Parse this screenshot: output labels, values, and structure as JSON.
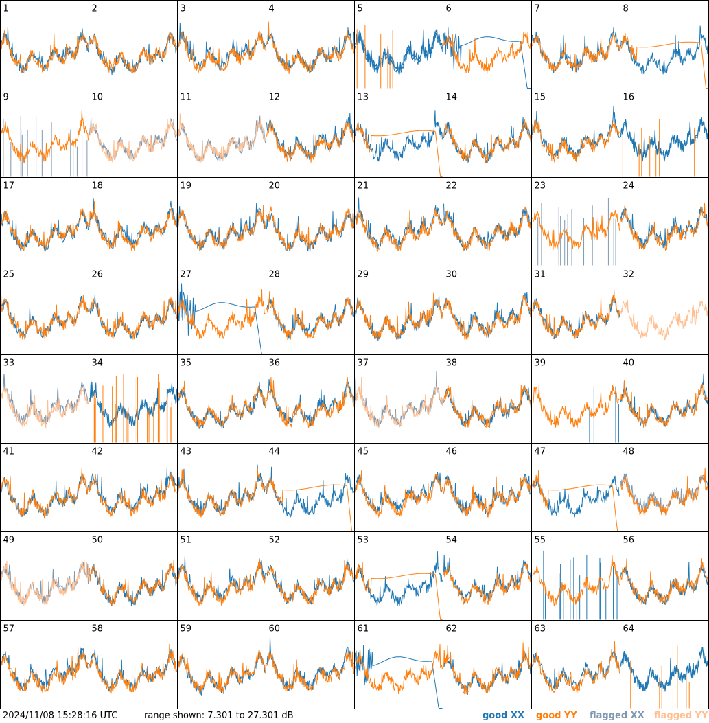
{
  "footer": {
    "timestamp": "2024/11/08 15:28:16 UTC",
    "range_text": "range shown: 7.301 to 27.301 dB"
  },
  "legend": [
    {
      "key": "good_xx",
      "label": "good XX",
      "color": "#1f77b4"
    },
    {
      "key": "good_yy",
      "label": "good YY",
      "color": "#ff7f0e"
    },
    {
      "key": "flagged_xx",
      "label": "flagged XX",
      "color": "#7f98b0"
    },
    {
      "key": "flagged_yy",
      "label": "flagged YY",
      "color": "#ffbf90"
    }
  ],
  "colors": {
    "good_xx": "#1f77b4",
    "good_yy": "#ff7f0e",
    "flagged_xx": "#7f98b0",
    "flagged_yy": "#ffbf90",
    "grid_lines": "#000000"
  },
  "chart_data": {
    "type": "line",
    "layout": "8x8 small multiples",
    "range_db": [
      7.301,
      27.301
    ],
    "panels": [
      1,
      2,
      3,
      4,
      5,
      6,
      7,
      8,
      9,
      10,
      11,
      12,
      13,
      14,
      15,
      16,
      17,
      18,
      19,
      20,
      21,
      22,
      23,
      24,
      25,
      26,
      27,
      28,
      29,
      30,
      31,
      32,
      33,
      34,
      35,
      36,
      37,
      38,
      39,
      40,
      41,
      42,
      43,
      44,
      45,
      46,
      47,
      48,
      49,
      50,
      51,
      52,
      53,
      54,
      55,
      56,
      57,
      58,
      59,
      60,
      61,
      62,
      63,
      64
    ],
    "panel_modes": {
      "5": [
        "good",
        "yy_spikes"
      ],
      "6": [
        "good",
        "xx_sag"
      ],
      "8": [
        "good",
        "yy_flat"
      ],
      "9": [
        "flagged_xx_spikes",
        "good_yy"
      ],
      "10": [
        "flagged",
        "none"
      ],
      "11": [
        "flagged",
        "none"
      ],
      "13": [
        "good",
        "yy_flat"
      ],
      "16": [
        "good",
        "yy_spikes"
      ],
      "23": [
        "flagged_xx_spikes",
        "good_yy"
      ],
      "27": [
        "good",
        "xx_sag"
      ],
      "32": [
        "flagged_yy_only",
        "none"
      ],
      "33": [
        "flagged",
        "none"
      ],
      "34": [
        "good",
        "yy_spikes"
      ],
      "37": [
        "flagged",
        "none"
      ],
      "39": [
        "good",
        "xx_spikes"
      ],
      "44": [
        "good",
        "yy_flat"
      ],
      "47": [
        "good",
        "yy_flat"
      ],
      "48": [
        "flagged_xx_only_good_yy",
        "none"
      ],
      "49": [
        "flagged",
        "none"
      ],
      "53": [
        "good",
        "yy_flat"
      ],
      "55": [
        "good",
        "xx_spikes"
      ],
      "61": [
        "good",
        "xx_sag"
      ],
      "64": [
        "good",
        "yy_spikes"
      ]
    }
  }
}
